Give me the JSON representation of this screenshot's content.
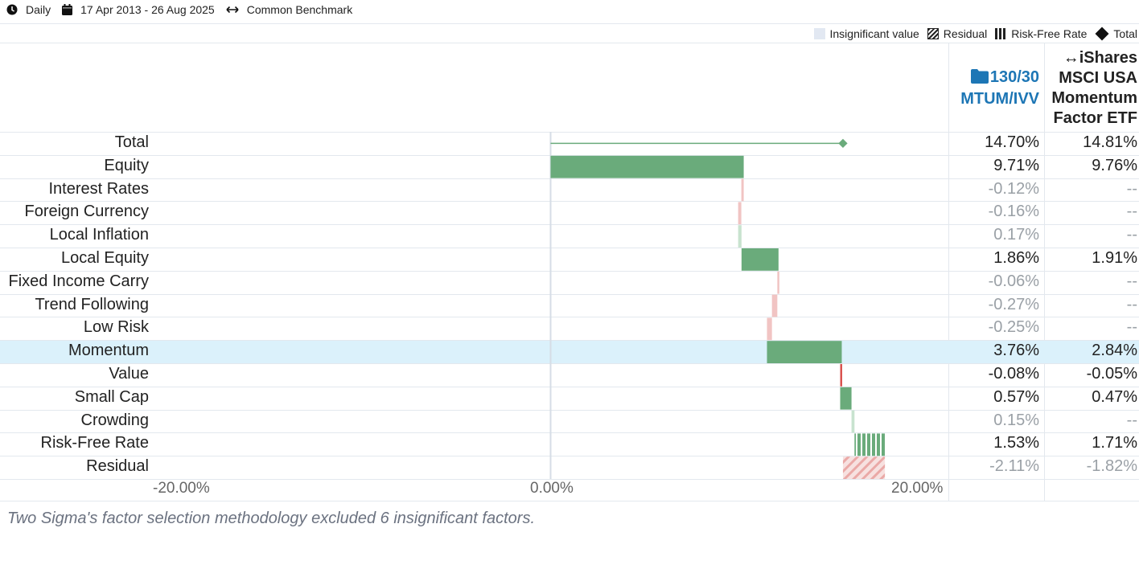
{
  "toolbar": {
    "frequency": "Daily",
    "date_range": "17 Apr 2013 - 26 Aug 2025",
    "benchmark": "Common Benchmark"
  },
  "legend": {
    "insignificant": "Insignificant value",
    "residual": "Residual",
    "risk_free": "Risk-Free Rate",
    "total": "Total"
  },
  "columns": {
    "portfolio": "130/30 MTUM/IVV",
    "benchmark_line1": "iShares",
    "benchmark_line2": "MSCI USA",
    "benchmark_line3": "Momentum",
    "benchmark_line4": "Factor ETF"
  },
  "rows": [
    {
      "label": "Total",
      "v1": "14.70%",
      "v2": "14.81%",
      "sig1": true,
      "sig2": true
    },
    {
      "label": "Equity",
      "v1": "9.71%",
      "v2": "9.76%",
      "sig1": true,
      "sig2": true
    },
    {
      "label": "Interest Rates",
      "v1": "-0.12%",
      "v2": "--",
      "sig1": false,
      "sig2": false
    },
    {
      "label": "Foreign Currency",
      "v1": "-0.16%",
      "v2": "--",
      "sig1": false,
      "sig2": false
    },
    {
      "label": "Local Inflation",
      "v1": "0.17%",
      "v2": "--",
      "sig1": false,
      "sig2": false
    },
    {
      "label": "Local Equity",
      "v1": "1.86%",
      "v2": "1.91%",
      "sig1": true,
      "sig2": true
    },
    {
      "label": "Fixed Income Carry",
      "v1": "-0.06%",
      "v2": "--",
      "sig1": false,
      "sig2": false
    },
    {
      "label": "Trend Following",
      "v1": "-0.27%",
      "v2": "--",
      "sig1": false,
      "sig2": false
    },
    {
      "label": "Low Risk",
      "v1": "-0.25%",
      "v2": "--",
      "sig1": false,
      "sig2": false
    },
    {
      "label": "Momentum",
      "v1": "3.76%",
      "v2": "2.84%",
      "sig1": true,
      "sig2": true
    },
    {
      "label": "Value",
      "v1": "-0.08%",
      "v2": "-0.05%",
      "sig1": true,
      "sig2": true
    },
    {
      "label": "Small Cap",
      "v1": "0.57%",
      "v2": "0.47%",
      "sig1": true,
      "sig2": true
    },
    {
      "label": "Crowding",
      "v1": "0.15%",
      "v2": "--",
      "sig1": false,
      "sig2": false
    },
    {
      "label": "Risk-Free Rate",
      "v1": "1.53%",
      "v2": "1.71%",
      "sig1": true,
      "sig2": true
    },
    {
      "label": "Residual",
      "v1": "-2.11%",
      "v2": "-1.82%",
      "sig1": false,
      "sig2": false
    }
  ],
  "highlighted_row": "Momentum",
  "chart_data": {
    "type": "bar",
    "subtype": "waterfall",
    "categories": [
      "Total",
      "Equity",
      "Interest Rates",
      "Foreign Currency",
      "Local Inflation",
      "Local Equity",
      "Fixed Income Carry",
      "Trend Following",
      "Low Risk",
      "Momentum",
      "Value",
      "Small Cap",
      "Crowding",
      "Risk-Free Rate",
      "Residual"
    ],
    "series": [
      {
        "name": "130/30 MTUM/IVV",
        "values": [
          14.7,
          9.71,
          -0.12,
          -0.16,
          0.17,
          1.86,
          -0.06,
          -0.27,
          -0.25,
          3.76,
          -0.08,
          0.57,
          0.15,
          1.53,
          -2.11
        ]
      },
      {
        "name": "iShares MSCI USA Momentum Factor ETF",
        "values": [
          14.81,
          9.76,
          null,
          null,
          null,
          1.91,
          null,
          null,
          null,
          2.84,
          -0.05,
          0.47,
          null,
          1.71,
          -1.82
        ]
      }
    ],
    "charted_series": "130/30 MTUM/IVV",
    "significant": [
      true,
      true,
      false,
      false,
      false,
      true,
      false,
      false,
      false,
      true,
      true,
      true,
      false,
      true,
      false
    ],
    "xlim": [
      -20,
      20
    ],
    "x_ticks": [
      "-20.00%",
      "0.00%",
      "20.00%"
    ],
    "colors": {
      "positive": "#6aab7b",
      "negative": "#d9534f",
      "positive_insignificant": "#c8e3cf",
      "negative_insignificant": "#f1c4c3",
      "total_marker": "#6aab7b",
      "highlight_row": "#dbf1fb"
    }
  },
  "footnote": "Two Sigma's factor selection methodology excluded 6 insignificant factors."
}
